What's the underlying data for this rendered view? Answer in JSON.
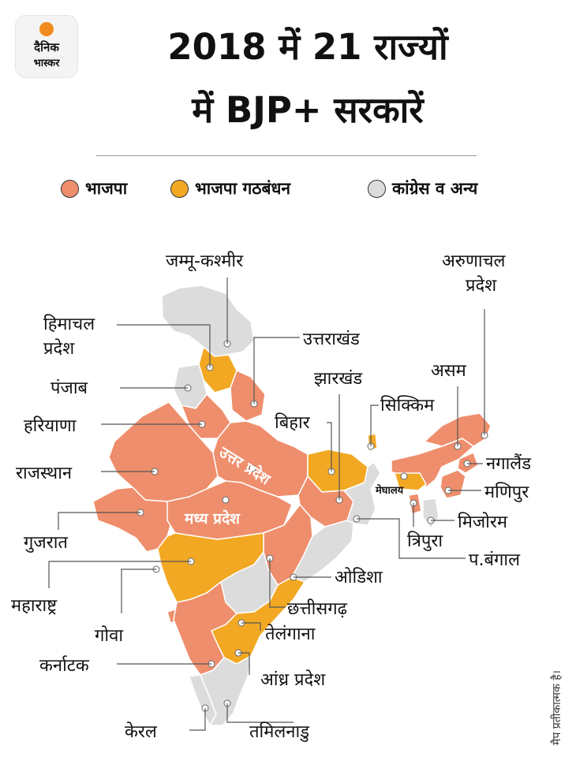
{
  "logo": {
    "line1": "दैनिक",
    "line2": "भास्कर"
  },
  "title": {
    "line1": "2018 में 21 राज्यों",
    "line2": "में BJP+ सरकारें"
  },
  "legend": [
    {
      "label": "भाजपा",
      "color": "#ef8e6c"
    },
    {
      "label": "भाजपा गठबंधन",
      "color": "#f2a823"
    },
    {
      "label": "कांग्रेस व अन्य",
      "color": "#dcdcdc"
    }
  ],
  "states": {
    "jk": "जम्मू-कश्मीर",
    "hp": "हिमाचल",
    "hp2": "प्रदेश",
    "uk": "उत्तराखंड",
    "pb": "पंजाब",
    "jh": "झारखंड",
    "sk": "सिक्किम",
    "br": "बिहार",
    "hr": "हरियाणा",
    "up": "उत्तर प्रदेश",
    "rj": "राजस्थान",
    "mp": "मध्य प्रदेश",
    "gj": "गुजरात",
    "mh": "महाराष्ट्र",
    "ga": "गोवा",
    "ka": "कर्नाटक",
    "kl": "केरल",
    "tn": "तमिलनाडु",
    "ap": "आंध्र प्रदेश",
    "tg": "तेलंगाना",
    "cg": "छत्तीसगढ़",
    "od": "ओडिशा",
    "wb": "प.बंगाल",
    "tr": "त्रिपुरा",
    "mz": "मिजोरम",
    "mn": "मणिपुर",
    "nl": "नगालैंड",
    "as": "असम",
    "ar": "अरुणाचल",
    "ar2": "प्रदेश",
    "ml": "मेघालय"
  },
  "note": "मैप प्रतीकात्मक है।"
}
